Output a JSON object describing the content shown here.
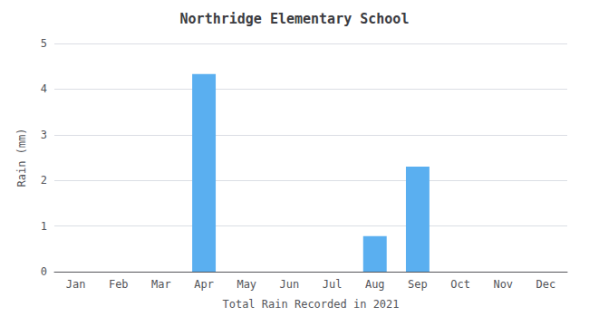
{
  "chart_data": {
    "type": "bar",
    "title": "Northridge Elementary School",
    "xlabel": "Total Rain Recorded in 2021",
    "ylabel": "Rain (mm)",
    "categories": [
      "Jan",
      "Feb",
      "Mar",
      "Apr",
      "May",
      "Jun",
      "Jul",
      "Aug",
      "Sep",
      "Oct",
      "Nov",
      "Dec"
    ],
    "values": [
      0,
      0,
      0,
      4.33,
      0,
      0,
      0,
      0.78,
      2.3,
      0,
      0,
      0
    ],
    "color": "#5aaff0",
    "ylim": [
      0,
      5
    ],
    "yticks": [
      0,
      1,
      2,
      3,
      4,
      5
    ],
    "grid": true
  }
}
